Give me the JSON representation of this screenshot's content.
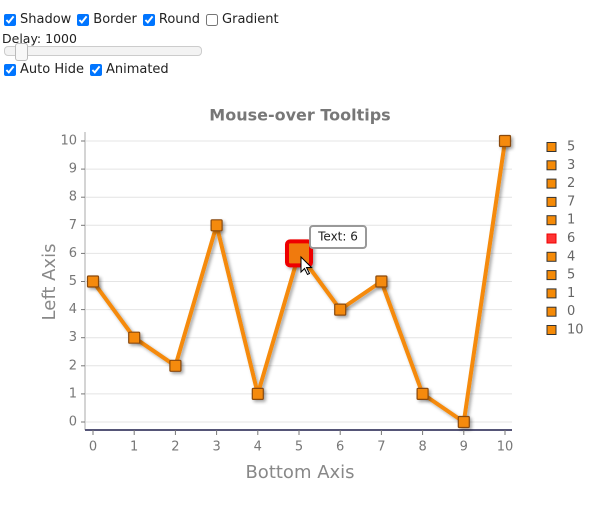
{
  "controls": {
    "checkboxes": [
      {
        "label": "Shadow",
        "checked": true
      },
      {
        "label": "Border",
        "checked": true
      },
      {
        "label": "Round",
        "checked": true
      },
      {
        "label": "Gradient",
        "checked": false
      }
    ],
    "delay_label": "Delay: 1000",
    "checkboxes2": [
      {
        "label": "Auto Hide",
        "checked": true
      },
      {
        "label": "Animated",
        "checked": true
      }
    ]
  },
  "chart_data": {
    "type": "line",
    "title": "Mouse-over Tooltips",
    "x_label": "Bottom Axis",
    "y_label": "Left Axis",
    "x": [
      0,
      1,
      2,
      3,
      4,
      5,
      6,
      7,
      8,
      9,
      10
    ],
    "series": [
      {
        "color": "#f58a07",
        "values": [
          5,
          3,
          2,
          7,
          1,
          6,
          4,
          5,
          1,
          0,
          10
        ]
      }
    ],
    "xlim": [
      0,
      10
    ],
    "xticks": [
      0,
      1,
      2,
      3,
      4,
      5,
      6,
      7,
      8,
      9,
      10
    ],
    "ylim": [
      0,
      10
    ],
    "yticks": [
      0,
      1,
      2,
      3,
      4,
      5,
      6,
      7,
      8,
      9,
      10
    ],
    "grid": true,
    "highlighted": 5,
    "tooltip": "Text: 6"
  }
}
